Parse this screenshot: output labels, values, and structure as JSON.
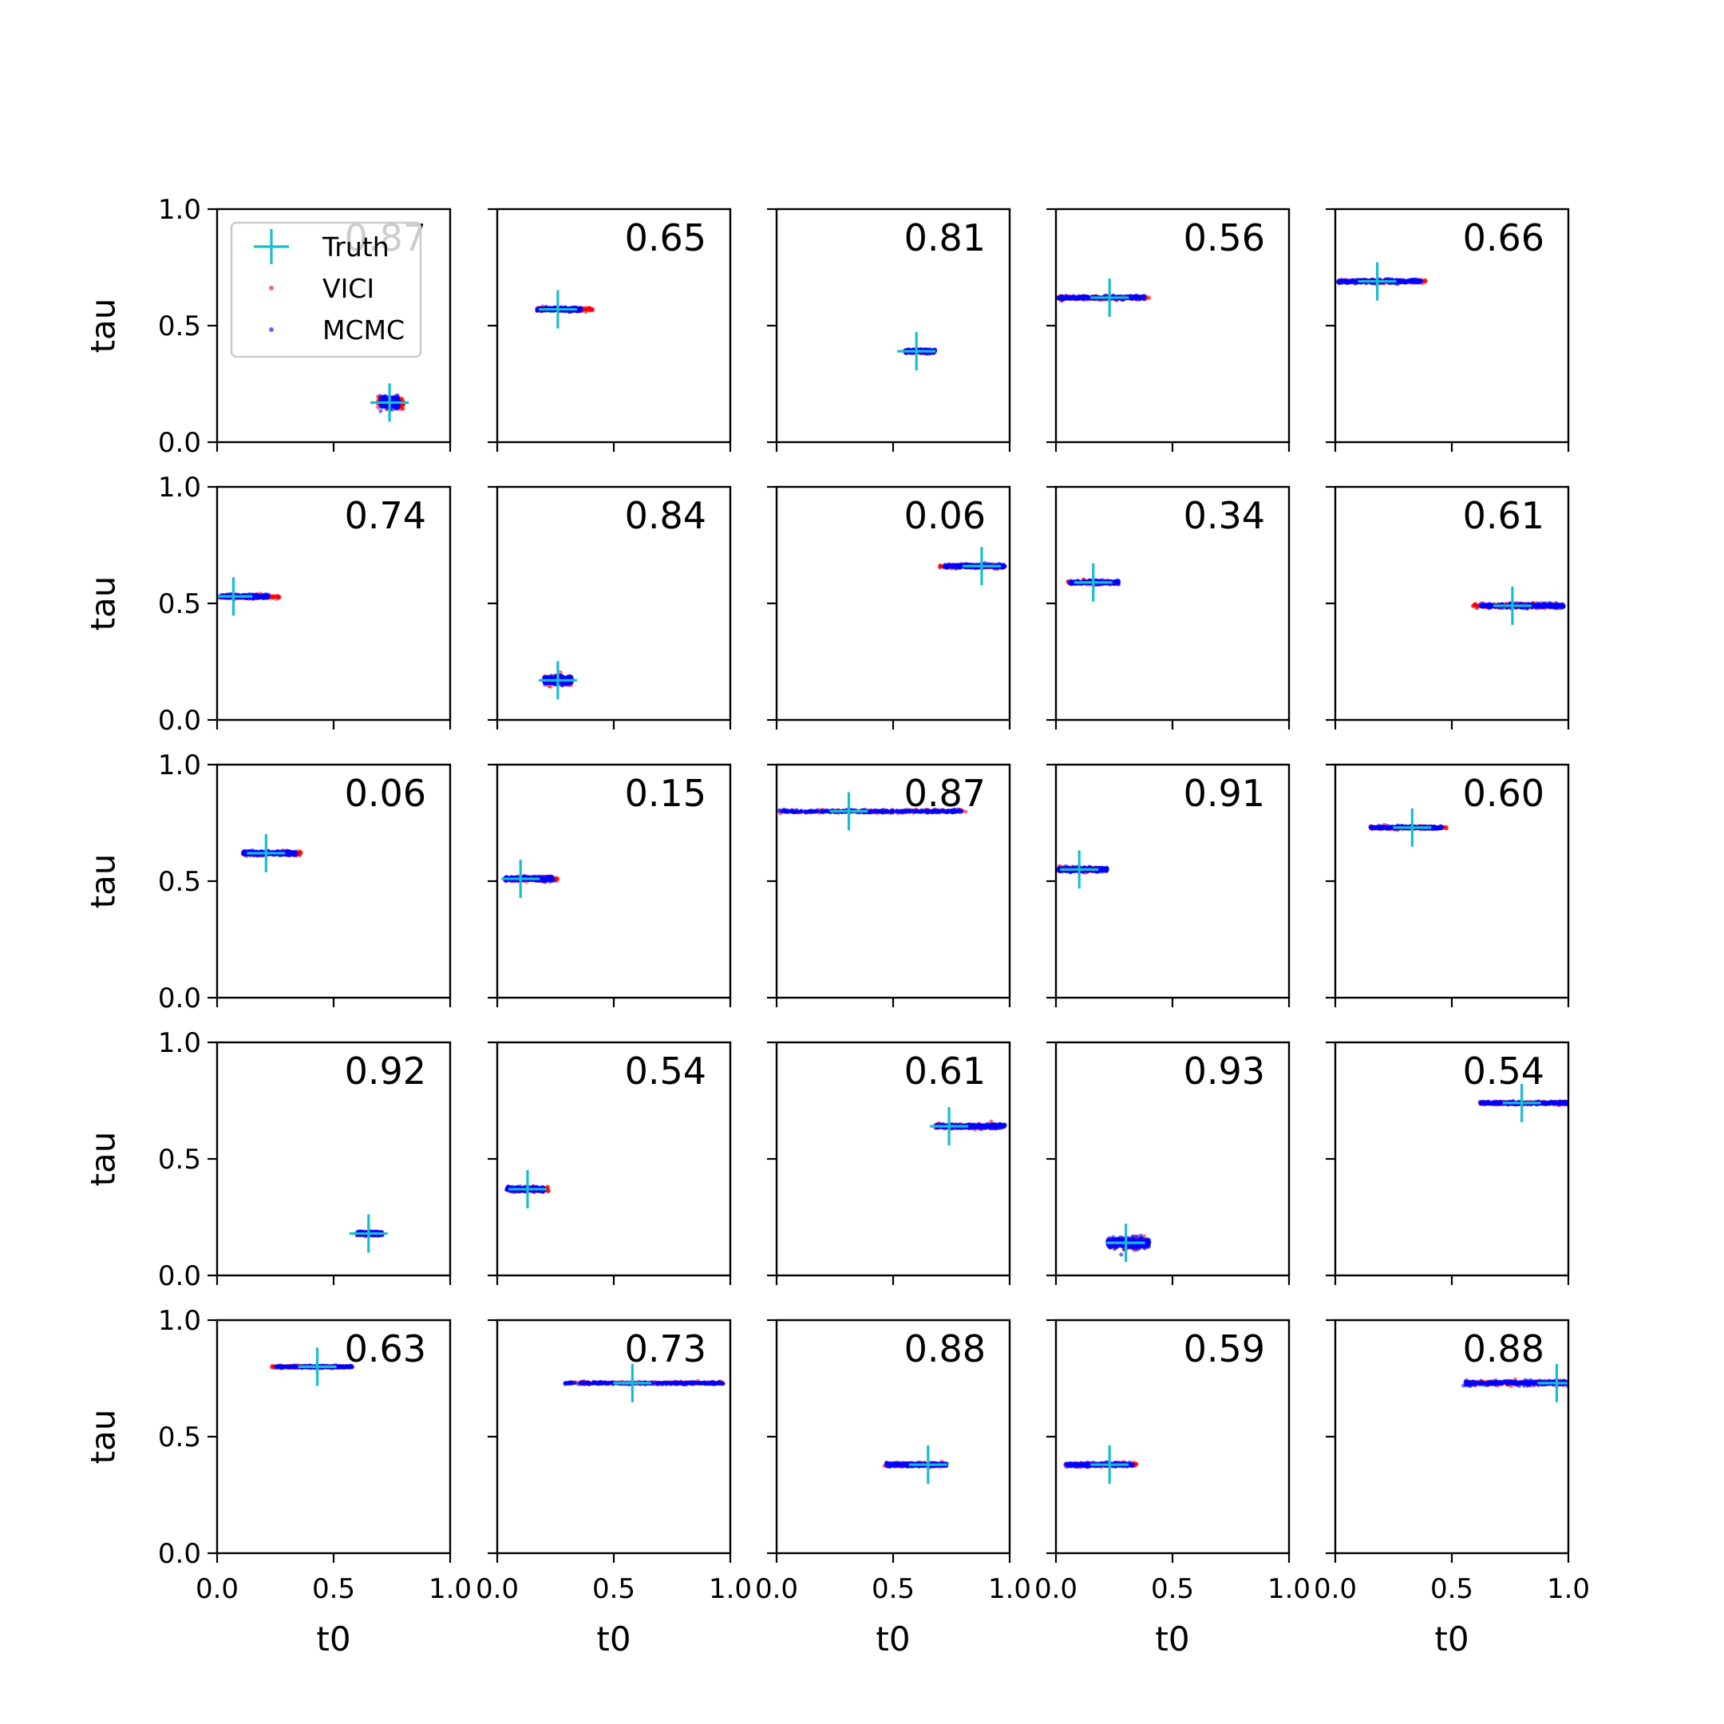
{
  "colors": {
    "truth": "#17becf",
    "vici": "#ff0000",
    "mcmc": "#0000ff",
    "axes": "#000000"
  },
  "legend": {
    "placement": "top-left of first panel",
    "entries": [
      {
        "label": "Truth",
        "marker": "plus",
        "color": "#17becf"
      },
      {
        "label": "VICI",
        "marker": "dot",
        "color": "#ff0000"
      },
      {
        "label": "MCMC",
        "marker": "dot",
        "color": "#0000ff"
      }
    ]
  },
  "chart_data": {
    "type": "scatter",
    "layout": {
      "rows": 5,
      "cols": 5
    },
    "xlabel": "t0",
    "ylabel": "tau",
    "xlim": [
      0,
      1
    ],
    "ylim": [
      0,
      1
    ],
    "xticks": [
      "0.0",
      "0.5",
      "1.0"
    ],
    "yticks": [
      "0.0",
      "0.5",
      "1.0"
    ],
    "grid": false,
    "panels": [
      {
        "value": "0.87",
        "truth": [
          0.74,
          0.17
        ],
        "vici": [
          0.69,
          0.8
        ],
        "mcmc": [
          0.7,
          0.78
        ],
        "tau_spread": 0.015
      },
      {
        "value": "0.65",
        "truth": [
          0.26,
          0.57
        ],
        "vici": [
          0.17,
          0.41
        ],
        "mcmc": [
          0.17,
          0.36
        ],
        "tau_spread": 0.005
      },
      {
        "value": "0.81",
        "truth": [
          0.6,
          0.39
        ],
        "vici": [
          0.55,
          0.66
        ],
        "mcmc": [
          0.55,
          0.68
        ],
        "tau_spread": 0.005
      },
      {
        "value": "0.56",
        "truth": [
          0.23,
          0.62
        ],
        "vici": [
          0.01,
          0.4
        ],
        "mcmc": [
          0.01,
          0.38
        ],
        "tau_spread": 0.005
      },
      {
        "value": "0.66",
        "truth": [
          0.18,
          0.69
        ],
        "vici": [
          0.01,
          0.39
        ],
        "mcmc": [
          0.01,
          0.37
        ],
        "tau_spread": 0.005
      },
      {
        "value": "0.74",
        "truth": [
          0.07,
          0.53
        ],
        "vici": [
          0.01,
          0.27
        ],
        "mcmc": [
          0.01,
          0.22
        ],
        "tau_spread": 0.005
      },
      {
        "value": "0.84",
        "truth": [
          0.26,
          0.17
        ],
        "vici": [
          0.2,
          0.32
        ],
        "mcmc": [
          0.2,
          0.32
        ],
        "tau_spread": 0.012
      },
      {
        "value": "0.06",
        "truth": [
          0.88,
          0.66
        ],
        "vici": [
          0.7,
          0.98
        ],
        "mcmc": [
          0.72,
          0.98
        ],
        "tau_spread": 0.005
      },
      {
        "value": "0.34",
        "truth": [
          0.16,
          0.59
        ],
        "vici": [
          0.05,
          0.27
        ],
        "mcmc": [
          0.06,
          0.27
        ],
        "tau_spread": 0.005
      },
      {
        "value": "0.61",
        "truth": [
          0.76,
          0.49
        ],
        "vici": [
          0.59,
          0.96
        ],
        "mcmc": [
          0.62,
          0.98
        ],
        "tau_spread": 0.006
      },
      {
        "value": "0.06",
        "truth": [
          0.21,
          0.62
        ],
        "vici": [
          0.11,
          0.36
        ],
        "mcmc": [
          0.11,
          0.34
        ],
        "tau_spread": 0.006
      },
      {
        "value": "0.15",
        "truth": [
          0.1,
          0.51
        ],
        "vici": [
          0.03,
          0.26
        ],
        "mcmc": [
          0.03,
          0.24
        ],
        "tau_spread": 0.006
      },
      {
        "value": "0.87",
        "truth": [
          0.31,
          0.8
        ],
        "vici": [
          0.01,
          0.82
        ],
        "mcmc": [
          0.01,
          0.8
        ],
        "tau_spread": 0.004
      },
      {
        "value": "0.91",
        "truth": [
          0.1,
          0.55
        ],
        "vici": [
          0.01,
          0.18
        ],
        "mcmc": [
          0.01,
          0.22
        ],
        "tau_spread": 0.006
      },
      {
        "value": "0.60",
        "truth": [
          0.33,
          0.73
        ],
        "vici": [
          0.15,
          0.48
        ],
        "mcmc": [
          0.15,
          0.46
        ],
        "tau_spread": 0.004
      },
      {
        "value": "0.92",
        "truth": [
          0.65,
          0.18
        ],
        "vici": [
          0.6,
          0.71
        ],
        "mcmc": [
          0.6,
          0.71
        ],
        "tau_spread": 0.005
      },
      {
        "value": "0.54",
        "truth": [
          0.13,
          0.37
        ],
        "vici": [
          0.04,
          0.22
        ],
        "mcmc": [
          0.04,
          0.2
        ],
        "tau_spread": 0.006
      },
      {
        "value": "0.61",
        "truth": [
          0.74,
          0.64
        ],
        "vici": [
          0.68,
          0.95
        ],
        "mcmc": [
          0.68,
          0.98
        ],
        "tau_spread": 0.006
      },
      {
        "value": "0.93",
        "truth": [
          0.3,
          0.14
        ],
        "vici": [
          0.22,
          0.4
        ],
        "mcmc": [
          0.22,
          0.4
        ],
        "tau_spread": 0.015
      },
      {
        "value": "0.54",
        "truth": [
          0.8,
          0.74
        ],
        "vici": [
          0.62,
          1.0
        ],
        "mcmc": [
          0.62,
          1.0
        ],
        "tau_spread": 0.004
      },
      {
        "value": "0.63",
        "truth": [
          0.43,
          0.8
        ],
        "vici": [
          0.23,
          0.55
        ],
        "mcmc": [
          0.25,
          0.58
        ],
        "tau_spread": 0.003
      },
      {
        "value": "0.73",
        "truth": [
          0.58,
          0.73
        ],
        "vici": [
          0.29,
          0.97
        ],
        "mcmc": [
          0.29,
          0.97
        ],
        "tau_spread": 0.003
      },
      {
        "value": "0.88",
        "truth": [
          0.65,
          0.38
        ],
        "vici": [
          0.46,
          0.72
        ],
        "mcmc": [
          0.47,
          0.73
        ],
        "tau_spread": 0.005
      },
      {
        "value": "0.59",
        "truth": [
          0.23,
          0.38
        ],
        "vici": [
          0.04,
          0.35
        ],
        "mcmc": [
          0.04,
          0.33
        ],
        "tau_spread": 0.005
      },
      {
        "value": "0.88",
        "truth": [
          0.95,
          0.73
        ],
        "vici": [
          0.57,
          0.99
        ],
        "mcmc": [
          0.55,
          1.0
        ],
        "tau_spread": 0.006
      }
    ]
  }
}
